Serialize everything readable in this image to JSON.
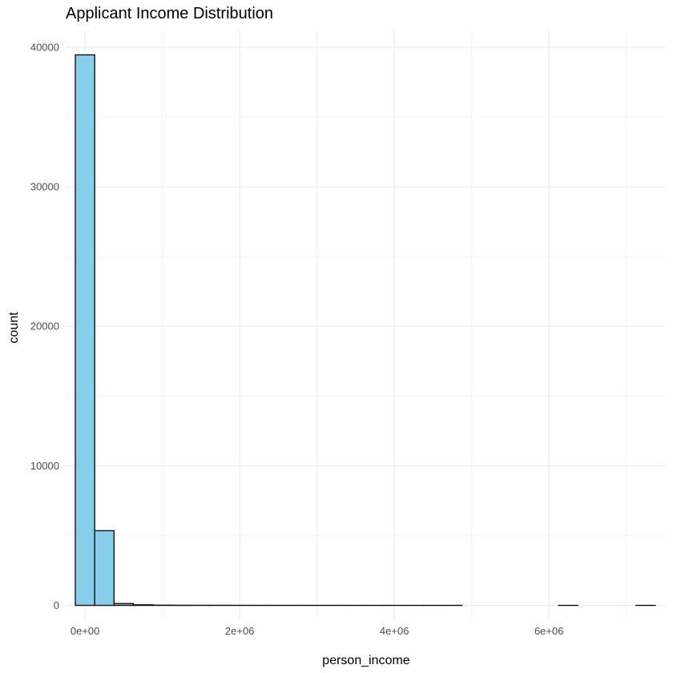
{
  "chart_data": {
    "type": "bar",
    "title": "Applicant Income Distribution",
    "xlabel": "person_income",
    "ylabel": "count",
    "xlim": [
      -250000,
      7500000
    ],
    "ylim": [
      -1000,
      41200
    ],
    "x_ticks": [
      0,
      2000000,
      4000000,
      6000000
    ],
    "x_tick_labels": [
      "0e+00",
      "2e+06",
      "4e+06",
      "6e+06"
    ],
    "y_ticks": [
      0,
      10000,
      20000,
      30000,
      40000
    ],
    "y_tick_labels": [
      "0",
      "10000",
      "20000",
      "30000",
      "40000"
    ],
    "grid": true,
    "bin_width": 250000,
    "bins_start": -125000,
    "counts": [
      39450,
      5350,
      130,
      40,
      15,
      8,
      6,
      5,
      4,
      3,
      3,
      2,
      2,
      2,
      1,
      1,
      1,
      1,
      1,
      1,
      0,
      0,
      0,
      0,
      0,
      1,
      0,
      0,
      0,
      1
    ],
    "fill_color": "#87ceeb",
    "stroke_color": "#000000"
  }
}
